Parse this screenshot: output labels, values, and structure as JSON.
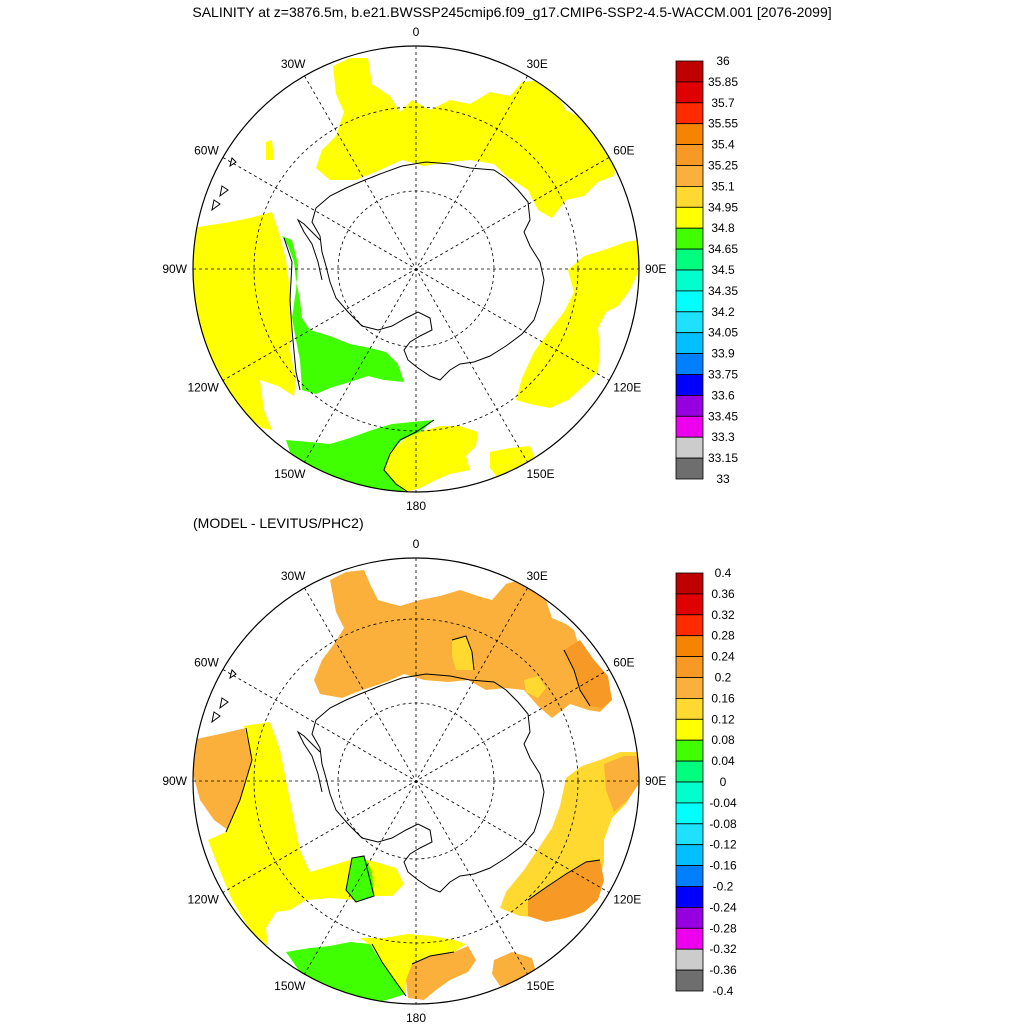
{
  "title": "SALINITY at z=3876.5m, b.e21.BWSSP245cmip6.f09_g17.CMIP6-SSP2-4.5-WACCM.001 [2076-2099]",
  "diff_title": "(MODEL - LEVITUS/PHC2)",
  "longitude_labels": [
    "0",
    "30E",
    "60E",
    "90E",
    "120E",
    "150E",
    "180",
    "150W",
    "120W",
    "90W",
    "60W",
    "30W"
  ],
  "colorbars": {
    "salinity": {
      "labels": [
        "36",
        "35.85",
        "35.7",
        "35.55",
        "35.4",
        "35.25",
        "35.1",
        "34.95",
        "34.8",
        "34.65",
        "34.5",
        "34.35",
        "34.2",
        "34.05",
        "33.9",
        "33.75",
        "33.6",
        "33.45",
        "33.3",
        "33.15",
        "33"
      ],
      "colors": [
        "#c00000",
        "#e00000",
        "#ff2a00",
        "#f58500",
        "#f79a25",
        "#fbb03b",
        "#ffd92f",
        "#ffff00",
        "#3fff00",
        "#00ff7f",
        "#00ffcc",
        "#00ffff",
        "#1ee1ff",
        "#00c0ff",
        "#0080ff",
        "#0000ff",
        "#9600e0",
        "#ee00ee",
        "#cccccc",
        "#6e6e6e"
      ]
    },
    "difference": {
      "labels": [
        "0.4",
        "0.36",
        "0.32",
        "0.28",
        "0.24",
        "0.2",
        "0.16",
        "0.12",
        "0.08",
        "0.04",
        "0",
        "-0.04",
        "-0.08",
        "-0.12",
        "-0.16",
        "-0.2",
        "-0.24",
        "-0.28",
        "-0.32",
        "-0.36",
        "-0.4"
      ],
      "colors": [
        "#c00000",
        "#e00000",
        "#ff2a00",
        "#f58500",
        "#f79a25",
        "#fbb03b",
        "#ffd92f",
        "#ffff00",
        "#3fff00",
        "#00ff7f",
        "#00ffcc",
        "#00ffff",
        "#1ee1ff",
        "#00c0ff",
        "#0080ff",
        "#0000ff",
        "#9600e0",
        "#ee00ee",
        "#cccccc",
        "#6e6e6e"
      ]
    }
  },
  "colors": {
    "yellow": "#ffff00",
    "green": "#3fff00",
    "orange": "#fbb03b",
    "dark_orange": "#f79a25",
    "gold": "#ffd92f"
  }
}
